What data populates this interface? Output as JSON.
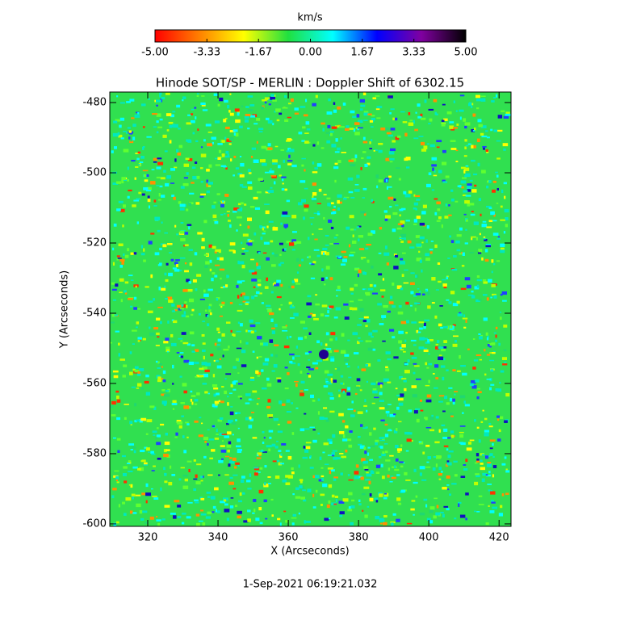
{
  "chart_data": {
    "type": "image",
    "title": "Hinode SOT/SP - MERLIN : Doppler Shift of 6302.15",
    "x_label": "X (Arcseconds)",
    "y_label": "Y (Arcseconds)",
    "date": "1-Sep-2021 06:19:21.032",
    "xlim": [
      309.2,
      423.4
    ],
    "xticks": [
      320,
      340,
      360,
      380,
      400,
      420
    ],
    "ylim": [
      -600.7,
      -477
    ],
    "yticks": [
      -600,
      -580,
      -560,
      -540,
      -520,
      -500,
      -480
    ],
    "colorbar": {
      "label": "km/s",
      "lim": [
        -5,
        5
      ],
      "ticks": [
        {
          "value": -5,
          "label": "-5.00"
        },
        {
          "value": -3.33,
          "label": "-3.33"
        },
        {
          "value": -1.67,
          "label": "-1.67"
        },
        {
          "value": 0,
          "label": "0.00"
        },
        {
          "value": 1.67,
          "label": "1.67"
        },
        {
          "value": 3.33,
          "label": "3.33"
        },
        {
          "value": 5,
          "label": "5.00"
        }
      ],
      "colormap": [
        "#ff0000",
        "#ff8000",
        "#ffff00",
        "#20e040",
        "#00ffff",
        "#0000ff",
        "#8000a0",
        "#000000"
      ]
    }
  }
}
